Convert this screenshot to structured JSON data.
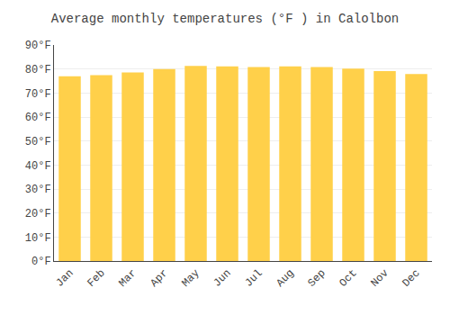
{
  "chart_data": {
    "type": "bar",
    "title": "Average monthly temperatures (°F ) in Calolbon",
    "categories": [
      "Jan",
      "Feb",
      "Mar",
      "Apr",
      "May",
      "Jun",
      "Jul",
      "Aug",
      "Sep",
      "Oct",
      "Nov",
      "Dec"
    ],
    "values": [
      77.0,
      77.4,
      78.6,
      80.0,
      81.3,
      81.1,
      80.8,
      81.1,
      80.8,
      80.2,
      79.1,
      77.9
    ],
    "color": "#FFD04A",
    "ylim": [
      0,
      90
    ],
    "yticks": [
      {
        "value": 0,
        "label": "0°F"
      },
      {
        "value": 10,
        "label": "10°F"
      },
      {
        "value": 20,
        "label": "20°F"
      },
      {
        "value": 30,
        "label": "30°F"
      },
      {
        "value": 40,
        "label": "40°F"
      },
      {
        "value": 50,
        "label": "50°F"
      },
      {
        "value": 60,
        "label": "60°F"
      },
      {
        "value": 70,
        "label": "70°F"
      },
      {
        "value": 80,
        "label": "80°F"
      },
      {
        "value": 90,
        "label": "90°F"
      }
    ],
    "grid": true
  }
}
